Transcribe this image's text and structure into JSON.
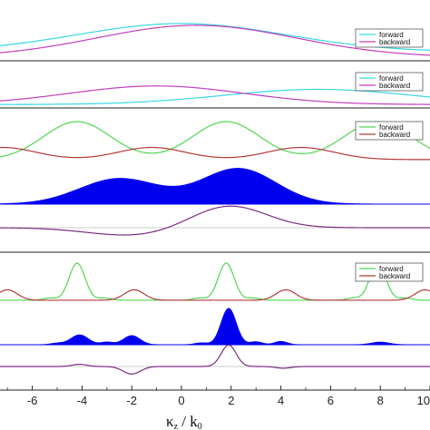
{
  "colors": {
    "cyan": "#39d7e3",
    "magenta": "#c13fbd",
    "green": "#4fd84f",
    "darkred": "#b23a3a",
    "blue": "#0000ee",
    "purple": "#7a2d82",
    "axis": "#222222",
    "baseline": "#bbbbbb"
  },
  "chart_data": {
    "type": "line",
    "x_axis": {
      "label_main": "κ",
      "label_sub1": "z",
      "label_mid": " / k",
      "label_sub2": "0",
      "ticks": [
        -6,
        -4,
        -2,
        0,
        2,
        4,
        6,
        8,
        10
      ],
      "tick_labels": [
        "-6",
        "-4",
        "-2",
        "0",
        "2",
        "4",
        "6",
        "8",
        "10"
      ],
      "xlim": [
        -7.3,
        10
      ]
    },
    "panels": [
      {
        "id": "panel-1",
        "kind": "lines",
        "ylim": [
          -0.05,
          1.05
        ],
        "legend": [
          {
            "label": "forward",
            "color": "cyan"
          },
          {
            "label": "backward",
            "color": "magenta"
          }
        ],
        "series": [
          {
            "legend_label": "forward",
            "color": "cyan",
            "formula": "gaussian",
            "center": 0,
            "width": 4.2,
            "amplitude": 0.8,
            "offset": 0.2
          },
          {
            "legend_label": "backward",
            "color": "magenta",
            "formula": "gaussian",
            "center": 0.6,
            "width": 4.0,
            "amplitude": 0.9,
            "offset": 0.05
          }
        ]
      },
      {
        "id": "panel-2",
        "kind": "lines",
        "ylim": [
          -0.05,
          1.05
        ],
        "legend": [
          {
            "label": "forward",
            "color": "cyan"
          },
          {
            "label": "backward",
            "color": "magenta"
          }
        ],
        "series": [
          {
            "legend_label": "forward",
            "color": "cyan",
            "formula": "gaussian",
            "center": 5.5,
            "width": 3.8,
            "amplitude": 0.45,
            "offset": 0.05
          },
          {
            "legend_label": "backward",
            "color": "magenta",
            "formula": "gaussian",
            "center": -1.0,
            "width": 3.5,
            "amplitude": 0.55,
            "offset": 0.05
          }
        ]
      },
      {
        "id": "panel-3",
        "kind": "lines",
        "ylim": [
          -0.05,
          1.05
        ],
        "legend": [
          {
            "label": "forward",
            "color": "green"
          },
          {
            "label": "backward",
            "color": "darkred"
          }
        ],
        "series": [
          {
            "legend_label": "forward",
            "color": "green",
            "formula": "sum",
            "centers": [
              -4.2,
              1.8,
              7.9
            ],
            "width": 1.35,
            "amplitude": 1.0,
            "offset": 0
          },
          {
            "legend_label": "backward",
            "color": "darkred",
            "formula": "sum",
            "centers": [
              -7.2,
              -1.2,
              4.8
            ],
            "width": 1.35,
            "amplitude": 0.32,
            "offset": 0
          }
        ]
      },
      {
        "id": "panel-4",
        "kind": "area",
        "ylim": [
          0,
          1.05
        ],
        "series": [
          {
            "color": "blue",
            "formula": "sum",
            "centers": [
              -2.5,
              2.3
            ],
            "widths": [
              1.6,
              1.5
            ],
            "amplitudes": [
              0.72,
              1.0
            ],
            "offset": 0
          }
        ]
      },
      {
        "id": "panel-5",
        "kind": "line_centered",
        "ylim": [
          -1.1,
          1.1
        ],
        "series": [
          {
            "color": "purple",
            "formula": "sum",
            "centers": [
              -2.0,
              1.9
            ],
            "widths": [
              1.8,
              1.5
            ],
            "amplitudes": [
              -0.35,
              1.0
            ],
            "offset": 0
          }
        ]
      },
      {
        "id": "panel-6",
        "kind": "lines",
        "ylim": [
          -0.05,
          1.05
        ],
        "legend": [
          {
            "label": "forward",
            "color": "green"
          },
          {
            "label": "backward",
            "color": "darkred"
          }
        ],
        "series": [
          {
            "legend_label": "forward",
            "color": "green",
            "formula": "sum",
            "centers": [
              -4.2,
              1.8,
              7.9
            ],
            "width": 0.32,
            "amplitude": 1.0,
            "offset": 0,
            "extra_centers": [
              -5.3,
              -3.1,
              0.7,
              2.9,
              6.9,
              9.0
            ],
            "extra_amplitude": 0.06
          },
          {
            "legend_label": "backward",
            "color": "darkred",
            "formula": "sum",
            "centers": [
              -7.0,
              -1.9,
              4.2,
              9.8
            ],
            "width": 0.4,
            "amplitude": 0.28,
            "offset": 0
          }
        ]
      },
      {
        "id": "panel-7",
        "kind": "area",
        "ylim": [
          0,
          1.05
        ],
        "series": [
          {
            "color": "blue",
            "formula": "sum",
            "centers": [
              -4.1,
              -2.0,
              1.9,
              -3.0,
              3.0,
              4.0,
              8.0,
              -5.0,
              0.8
            ],
            "widths": [
              0.35,
              0.33,
              0.3,
              0.25,
              0.25,
              0.25,
              0.35,
              0.25,
              0.25
            ],
            "amplitudes": [
              0.27,
              0.25,
              1.0,
              0.07,
              0.08,
              0.09,
              0.07,
              0.04,
              0.05
            ],
            "offset": 0
          }
        ]
      },
      {
        "id": "panel-8",
        "kind": "line_centered",
        "ylim": [
          -1.1,
          1.1
        ],
        "series": [
          {
            "color": "purple",
            "formula": "sum",
            "centers": [
              -2.0,
              1.9,
              -4.1,
              4.1
            ],
            "widths": [
              0.35,
              0.3,
              0.3,
              0.3
            ],
            "amplitudes": [
              -0.35,
              1.0,
              0.1,
              -0.08
            ],
            "offset": 0
          }
        ]
      }
    ]
  }
}
